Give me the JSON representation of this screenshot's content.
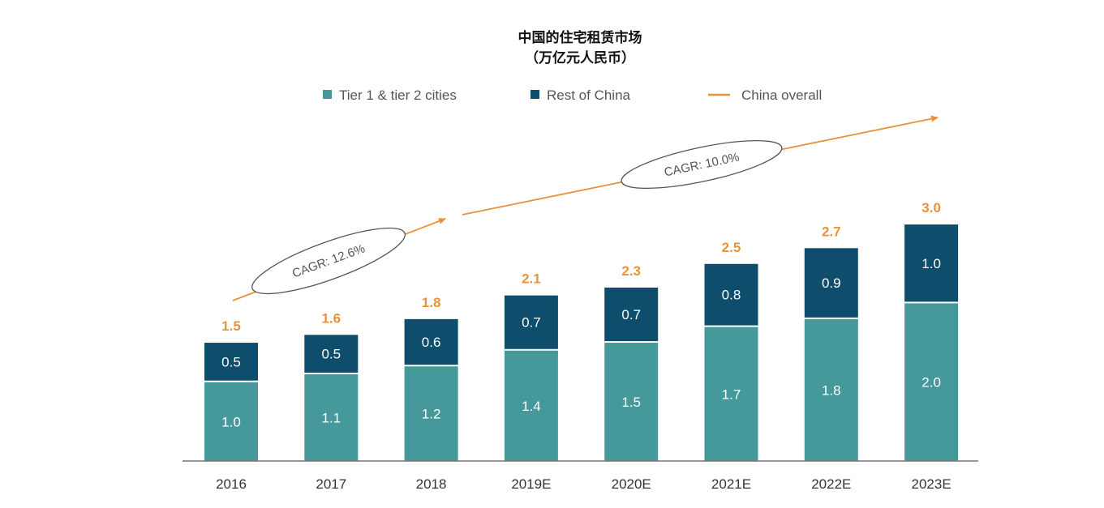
{
  "chart_data": {
    "type": "bar",
    "stacked": true,
    "title": "中国的住宅租赁市场",
    "subtitle": "（万亿元人民币）",
    "categories": [
      "2016",
      "2017",
      "2018",
      "2019E",
      "2020E",
      "2021E",
      "2022E",
      "2023E"
    ],
    "series": [
      {
        "name": "Tier 1 & tier 2 cities",
        "color": "#46999a",
        "values": [
          1.0,
          1.1,
          1.2,
          1.4,
          1.5,
          1.7,
          1.8,
          2.0
        ],
        "labels": [
          "1.0",
          "1.1",
          "1.2",
          "1.4",
          "1.5",
          "1.7",
          "1.8",
          "2.0"
        ]
      },
      {
        "name": "Rest of China",
        "color": "#0e4d6b",
        "values": [
          0.5,
          0.5,
          0.6,
          0.7,
          0.7,
          0.8,
          0.9,
          1.0
        ],
        "labels": [
          "0.5",
          "0.5",
          "0.6",
          "0.7",
          "0.7",
          "0.8",
          "0.9",
          "1.0"
        ]
      }
    ],
    "totals": [
      1.5,
      1.6,
      1.8,
      2.1,
      2.3,
      2.5,
      2.7,
      3.0
    ],
    "total_labels": [
      "1.5",
      "1.6",
      "1.8",
      "2.1",
      "2.3",
      "2.5",
      "2.7",
      "3.0"
    ],
    "line_legend": {
      "name": "China overall",
      "color": "#e8923a"
    },
    "annotations": [
      {
        "text": "CAGR: 12.6%",
        "from": "2016",
        "to": "2018"
      },
      {
        "text": "CAGR: 10.0%",
        "from": "2019E",
        "to": "2023E"
      }
    ],
    "legend_position": "top",
    "grid": false
  }
}
